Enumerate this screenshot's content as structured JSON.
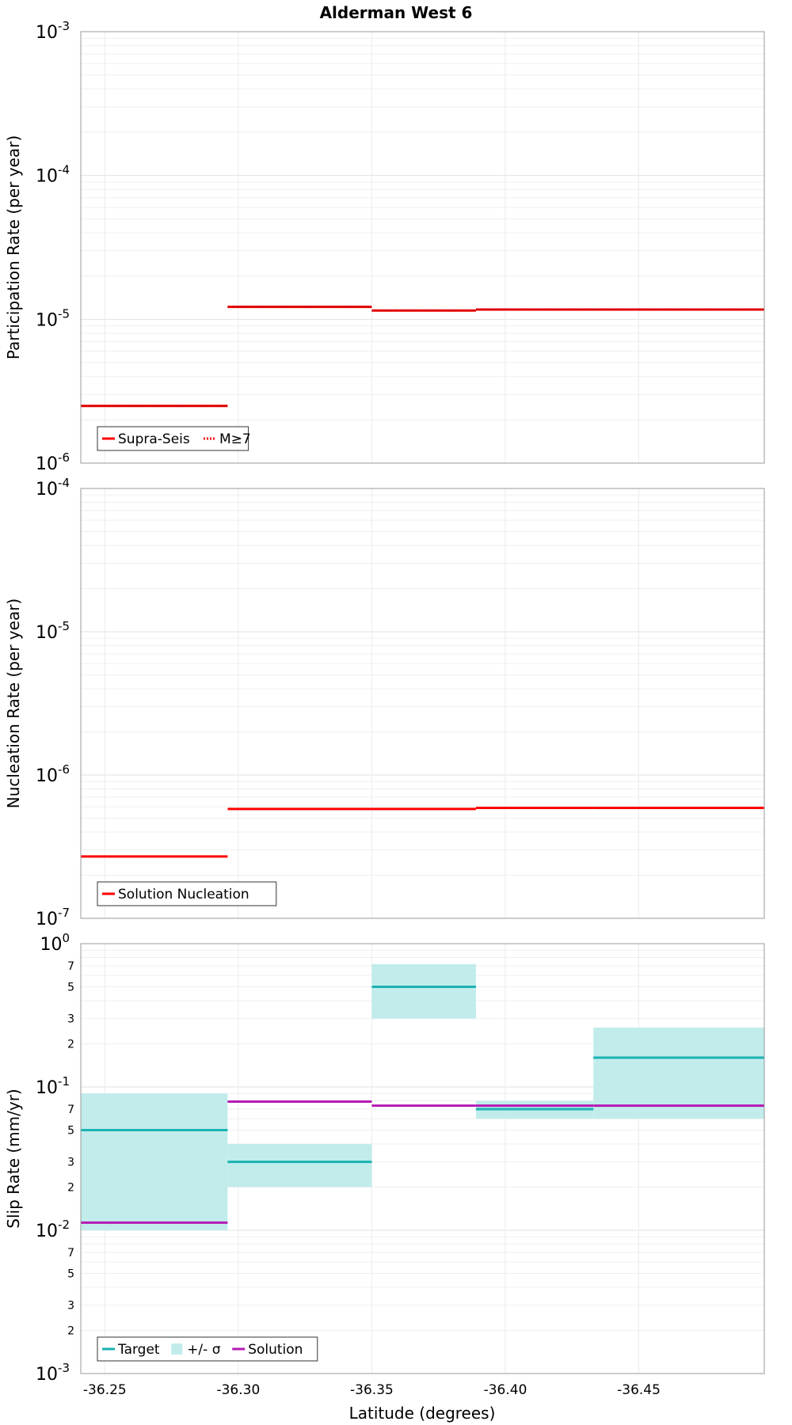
{
  "title": "Alderman West 6",
  "chart_data": [
    {
      "type": "line",
      "ylabel": "Participation Rate (per year)",
      "yscale": "log",
      "ylim": [
        1e-06,
        0.001
      ],
      "y_major_ticks": [
        {
          "base": "10",
          "exp": "-6"
        },
        {
          "base": "10",
          "exp": "-5"
        },
        {
          "base": "10",
          "exp": "-4"
        },
        {
          "base": "10",
          "exp": "-3"
        }
      ],
      "y_minor_labels": [],
      "series": [
        {
          "name": "Supra-Seis",
          "color": "#ff0000",
          "style": "solid",
          "segments": [
            {
              "x0": -36.241,
              "x1": -36.296,
              "y": 2.5e-06
            },
            {
              "x0": -36.296,
              "x1": -36.35,
              "y": 1.22e-05
            },
            {
              "x0": -36.35,
              "x1": -36.389,
              "y": 1.15e-05
            },
            {
              "x0": -36.389,
              "x1": -36.433,
              "y": 1.17e-05
            },
            {
              "x0": -36.433,
              "x1": -36.497,
              "y": 1.17e-05
            }
          ]
        },
        {
          "name": "M≥7",
          "color": "#ff0000",
          "style": "dotted",
          "segments": [
            {
              "x0": -36.241,
              "x1": -36.296,
              "y": 2.5e-06
            },
            {
              "x0": -36.296,
              "x1": -36.35,
              "y": 1.22e-05
            },
            {
              "x0": -36.35,
              "x1": -36.389,
              "y": 1.15e-05
            },
            {
              "x0": -36.389,
              "x1": -36.433,
              "y": 1.17e-05
            },
            {
              "x0": -36.433,
              "x1": -36.497,
              "y": 1.17e-05
            }
          ]
        }
      ],
      "legend": [
        {
          "label": "Supra-Seis",
          "kind": "line",
          "color": "#ff0000"
        },
        {
          "label": "M≥7",
          "kind": "dotted",
          "color": "#ff0000"
        }
      ],
      "legend_position": "bottom-left"
    },
    {
      "type": "line",
      "ylabel": "Nucleation Rate (per year)",
      "yscale": "log",
      "ylim": [
        1e-07,
        0.0001
      ],
      "y_major_ticks": [
        {
          "base": "10",
          "exp": "-7"
        },
        {
          "base": "10",
          "exp": "-6"
        },
        {
          "base": "10",
          "exp": "-5"
        },
        {
          "base": "10",
          "exp": "-4"
        }
      ],
      "y_minor_labels": [],
      "series": [
        {
          "name": "Solution Nucleation",
          "color": "#ff0000",
          "style": "solid",
          "segments": [
            {
              "x0": -36.241,
              "x1": -36.296,
              "y": 2.7e-07
            },
            {
              "x0": -36.296,
              "x1": -36.35,
              "y": 5.8e-07
            },
            {
              "x0": -36.35,
              "x1": -36.389,
              "y": 5.8e-07
            },
            {
              "x0": -36.389,
              "x1": -36.433,
              "y": 5.9e-07
            },
            {
              "x0": -36.433,
              "x1": -36.497,
              "y": 5.9e-07
            }
          ]
        }
      ],
      "legend": [
        {
          "label": "Solution Nucleation",
          "kind": "line",
          "color": "#ff0000"
        }
      ],
      "legend_position": "bottom-left"
    },
    {
      "type": "line",
      "ylabel": "Slip Rate (mm/yr)",
      "yscale": "log",
      "ylim": [
        0.001,
        1
      ],
      "y_major_ticks": [
        {
          "base": "10",
          "exp": "-3"
        },
        {
          "base": "10",
          "exp": "-2"
        },
        {
          "base": "10",
          "exp": "-1"
        },
        {
          "base": "10",
          "exp": "0"
        }
      ],
      "y_minor_labels": [
        {
          "value": 0.002,
          "label": "2"
        },
        {
          "value": 0.003,
          "label": "3"
        },
        {
          "value": 0.005,
          "label": "5"
        },
        {
          "value": 0.007,
          "label": "7"
        },
        {
          "value": 0.02,
          "label": "2"
        },
        {
          "value": 0.03,
          "label": "3"
        },
        {
          "value": 0.05,
          "label": "5"
        },
        {
          "value": 0.07,
          "label": "7"
        },
        {
          "value": 0.2,
          "label": "2"
        },
        {
          "value": 0.3,
          "label": "3"
        },
        {
          "value": 0.5,
          "label": "5"
        },
        {
          "value": 0.7,
          "label": "7"
        }
      ],
      "bands": {
        "name": "+/- σ",
        "color": "#c2ecec",
        "segments": [
          {
            "x0": -36.241,
            "x1": -36.296,
            "y0": 0.01,
            "y1": 0.09
          },
          {
            "x0": -36.296,
            "x1": -36.35,
            "y0": 0.02,
            "y1": 0.04
          },
          {
            "x0": -36.35,
            "x1": -36.389,
            "y0": 0.3,
            "y1": 0.72
          },
          {
            "x0": -36.389,
            "x1": -36.433,
            "y0": 0.06,
            "y1": 0.08
          },
          {
            "x0": -36.433,
            "x1": -36.497,
            "y0": 0.06,
            "y1": 0.26
          }
        ]
      },
      "series": [
        {
          "name": "Target",
          "color": "#19b2b2",
          "style": "solid",
          "segments": [
            {
              "x0": -36.241,
              "x1": -36.296,
              "y": 0.05
            },
            {
              "x0": -36.296,
              "x1": -36.35,
              "y": 0.03
            },
            {
              "x0": -36.35,
              "x1": -36.389,
              "y": 0.5
            },
            {
              "x0": -36.389,
              "x1": -36.433,
              "y": 0.07
            },
            {
              "x0": -36.433,
              "x1": -36.497,
              "y": 0.16
            }
          ]
        },
        {
          "name": "Solution",
          "color": "#b419b4",
          "style": "solid",
          "segments": [
            {
              "x0": -36.241,
              "x1": -36.296,
              "y": 0.0113
            },
            {
              "x0": -36.296,
              "x1": -36.35,
              "y": 0.079
            },
            {
              "x0": -36.35,
              "x1": -36.389,
              "y": 0.074
            },
            {
              "x0": -36.389,
              "x1": -36.433,
              "y": 0.074
            },
            {
              "x0": -36.433,
              "x1": -36.497,
              "y": 0.074
            }
          ]
        }
      ],
      "legend": [
        {
          "label": "Target",
          "kind": "line",
          "color": "#19b2b2"
        },
        {
          "label": "+/- σ",
          "kind": "box",
          "color": "#c2ecec"
        },
        {
          "label": "Solution",
          "kind": "line",
          "color": "#b419b4"
        }
      ],
      "legend_position": "bottom-left"
    }
  ],
  "x_axis": {
    "xlabel": "Latitude (degrees)",
    "xlim": [
      -36.241,
      -36.497
    ],
    "ticks": [
      {
        "value": -36.25,
        "label": "-36.25"
      },
      {
        "value": -36.3,
        "label": "-36.30"
      },
      {
        "value": -36.35,
        "label": "-36.35"
      },
      {
        "value": -36.4,
        "label": "-36.40"
      },
      {
        "value": -36.45,
        "label": "-36.45"
      }
    ]
  }
}
